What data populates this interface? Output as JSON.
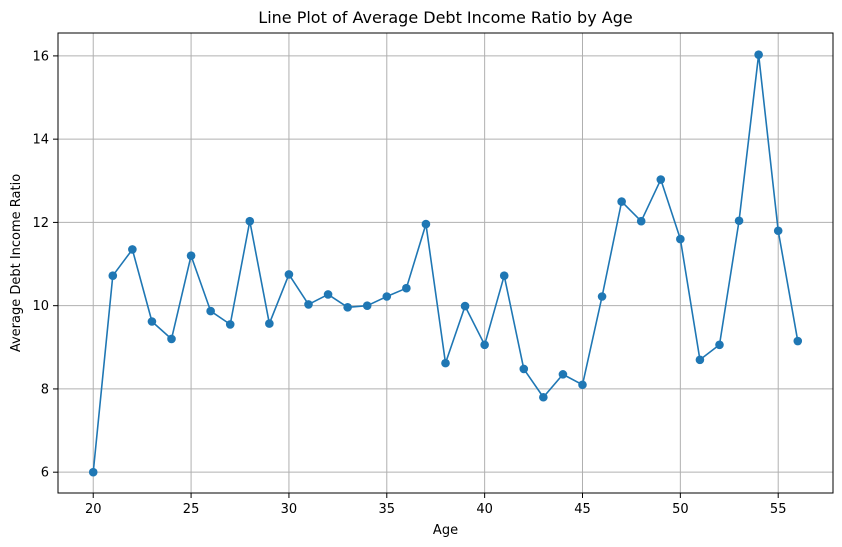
{
  "chart_data": {
    "type": "line",
    "title": "Line Plot of Average Debt Income Ratio by Age",
    "xlabel": "Age",
    "ylabel": "Average Debt Income Ratio",
    "xlim": [
      18.2,
      57.8
    ],
    "ylim": [
      5.5,
      16.55
    ],
    "xticks": [
      20,
      25,
      30,
      35,
      40,
      45,
      50,
      55
    ],
    "yticks": [
      6,
      8,
      10,
      12,
      14,
      16
    ],
    "grid": true,
    "series": [
      {
        "color": "#1f77b4",
        "marker": "circle",
        "x": [
          20,
          21,
          22,
          23,
          24,
          25,
          26,
          27,
          28,
          29,
          30,
          31,
          32,
          33,
          34,
          35,
          36,
          37,
          38,
          39,
          40,
          41,
          42,
          43,
          44,
          45,
          46,
          47,
          48,
          49,
          50,
          51,
          52,
          53,
          54,
          55,
          56
        ],
        "y": [
          6.0,
          10.72,
          11.35,
          9.62,
          9.2,
          11.2,
          9.87,
          9.55,
          12.03,
          9.57,
          10.75,
          10.03,
          10.27,
          9.96,
          10.0,
          10.22,
          10.42,
          11.96,
          8.62,
          9.99,
          9.06,
          10.72,
          8.48,
          7.8,
          8.35,
          8.1,
          10.22,
          12.5,
          12.03,
          13.03,
          11.6,
          8.7,
          9.06,
          12.04,
          16.03,
          11.8,
          9.15
        ]
      }
    ]
  }
}
